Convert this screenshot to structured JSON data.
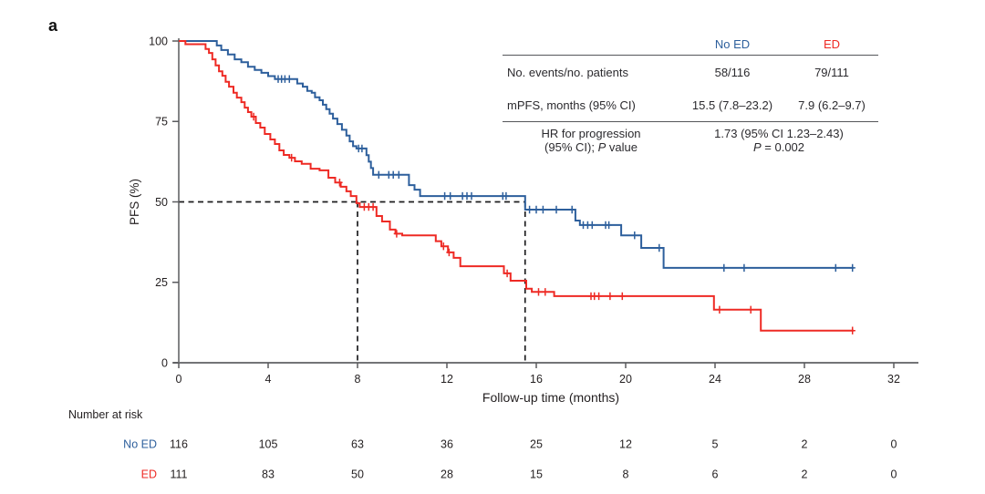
{
  "panel_label": "a",
  "stats": {
    "col_headers": [
      "No ED",
      "ED"
    ],
    "rows": [
      {
        "label": "No. events/no. patients",
        "no_ed": "58/116",
        "ed": "79/111"
      },
      {
        "label": "mPFS, months (95% CI)",
        "no_ed": "15.5 (7.8–23.2)",
        "ed": "7.9 (6.2–9.7)"
      }
    ],
    "hr_row": {
      "label_line1": "HR for progression",
      "label_line2_pre": "(95% CI); ",
      "label_line2_italic": "P",
      "label_line2_post": " value",
      "value_line1": "1.73 (95% CI 1.23–2.43)",
      "value_line2_italic": "P",
      "value_line2_post": " = 0.002"
    }
  },
  "chart_data": {
    "type": "line",
    "subtype": "kaplan_meier_step",
    "xlabel": "Follow-up time (months)",
    "ylabel": "PFS (%)",
    "xlim": [
      0,
      33
    ],
    "ylim": [
      0,
      100
    ],
    "x_ticks": [
      0,
      4,
      8,
      12,
      16,
      20,
      24,
      28,
      32
    ],
    "y_ticks": [
      0,
      25,
      50,
      75,
      100
    ],
    "grid": false,
    "median_guides": {
      "fifty_pct_line": {
        "y": 50,
        "x_from": 0,
        "x_to": 15.5
      },
      "vertical_drops": [
        8,
        15.5
      ]
    },
    "series": [
      {
        "name": "No ED",
        "color": "#2d5f9c",
        "median_pfs_months": 15.5,
        "end_month": 30.2,
        "steps": [
          [
            0,
            100
          ],
          [
            1.7,
            98.6
          ],
          [
            1.9,
            97.2
          ],
          [
            2.2,
            95.8
          ],
          [
            2.5,
            94.3
          ],
          [
            2.8,
            93.4
          ],
          [
            3.1,
            92.0
          ],
          [
            3.4,
            91.0
          ],
          [
            3.7,
            90.1
          ],
          [
            4.0,
            89.1
          ],
          [
            4.3,
            88.2
          ],
          [
            5.3,
            86.8
          ],
          [
            5.55,
            85.8
          ],
          [
            5.75,
            84.5
          ],
          [
            5.95,
            83.9
          ],
          [
            6.1,
            82.5
          ],
          [
            6.3,
            81.6
          ],
          [
            6.45,
            80.2
          ],
          [
            6.6,
            78.8
          ],
          [
            6.75,
            77.4
          ],
          [
            6.9,
            75.9
          ],
          [
            7.1,
            74.2
          ],
          [
            7.3,
            72.4
          ],
          [
            7.5,
            70.6
          ],
          [
            7.65,
            68.8
          ],
          [
            7.8,
            67.3
          ],
          [
            7.95,
            66.6
          ],
          [
            8.4,
            64.5
          ],
          [
            8.5,
            62.5
          ],
          [
            8.6,
            60.5
          ],
          [
            8.7,
            58.4
          ],
          [
            10.3,
            55.2
          ],
          [
            10.55,
            53.8
          ],
          [
            10.8,
            51.8
          ],
          [
            15.5,
            47.6
          ],
          [
            17.75,
            44.2
          ],
          [
            17.95,
            42.8
          ],
          [
            19.8,
            39.6
          ],
          [
            20.7,
            35.7
          ],
          [
            21.7,
            29.5
          ]
        ],
        "censor_months": [
          4.45,
          4.6,
          4.75,
          4.95,
          8.05,
          8.2,
          8.95,
          9.4,
          9.6,
          9.85,
          11.9,
          12.15,
          12.7,
          12.9,
          13.1,
          14.5,
          14.65,
          15.7,
          16.0,
          16.3,
          16.9,
          17.6,
          18.1,
          18.3,
          18.5,
          19.1,
          19.25,
          20.4,
          21.5,
          24.4,
          25.3,
          29.4,
          30.15
        ]
      },
      {
        "name": "ED",
        "color": "#ee2a24",
        "median_pfs_months": 7.9,
        "end_month": 30.2,
        "steps": [
          [
            0,
            100
          ],
          [
            0.3,
            99.0
          ],
          [
            1.2,
            97.5
          ],
          [
            1.35,
            96.3
          ],
          [
            1.5,
            94.3
          ],
          [
            1.65,
            92.4
          ],
          [
            1.8,
            90.6
          ],
          [
            1.95,
            89.2
          ],
          [
            2.1,
            87.3
          ],
          [
            2.25,
            85.8
          ],
          [
            2.45,
            83.9
          ],
          [
            2.6,
            82.4
          ],
          [
            2.8,
            81.0
          ],
          [
            2.95,
            79.3
          ],
          [
            3.1,
            77.9
          ],
          [
            3.25,
            76.5
          ],
          [
            3.45,
            74.5
          ],
          [
            3.65,
            73.1
          ],
          [
            3.85,
            71.1
          ],
          [
            4.1,
            69.4
          ],
          [
            4.3,
            68.0
          ],
          [
            4.5,
            66.0
          ],
          [
            4.7,
            64.6
          ],
          [
            4.95,
            63.7
          ],
          [
            5.2,
            62.6
          ],
          [
            5.5,
            61.8
          ],
          [
            5.9,
            60.3
          ],
          [
            6.3,
            59.8
          ],
          [
            6.7,
            57.5
          ],
          [
            7.0,
            56.0
          ],
          [
            7.25,
            54.7
          ],
          [
            7.5,
            53.3
          ],
          [
            7.7,
            51.8
          ],
          [
            7.95,
            49.6
          ],
          [
            8.1,
            48.4
          ],
          [
            8.85,
            45.6
          ],
          [
            9.1,
            43.9
          ],
          [
            9.45,
            41.4
          ],
          [
            9.7,
            40.1
          ],
          [
            10.0,
            39.6
          ],
          [
            11.5,
            37.8
          ],
          [
            11.75,
            36.2
          ],
          [
            12.05,
            34.3
          ],
          [
            12.3,
            32.6
          ],
          [
            12.6,
            30.0
          ],
          [
            14.55,
            27.8
          ],
          [
            14.85,
            25.5
          ],
          [
            15.55,
            23.0
          ],
          [
            15.8,
            22.0
          ],
          [
            16.8,
            20.7
          ],
          [
            23.95,
            16.5
          ],
          [
            26.05,
            10.0
          ]
        ],
        "censor_months": [
          3.35,
          5.05,
          7.2,
          8.3,
          8.5,
          8.7,
          9.75,
          11.85,
          12.1,
          14.7,
          16.1,
          16.4,
          18.45,
          18.6,
          18.8,
          19.3,
          19.85,
          24.2,
          25.6,
          30.15
        ]
      }
    ],
    "risk_table": {
      "title": "Number at risk",
      "time_points": [
        0,
        4,
        8,
        12,
        16,
        20,
        24,
        28,
        32
      ],
      "rows": [
        {
          "name": "No ED",
          "color": "#2d5f9c",
          "counts": [
            "116",
            "105",
            "63",
            "36",
            "25",
            "12",
            "5",
            "2",
            "0"
          ]
        },
        {
          "name": "ED",
          "color": "#ee2a24",
          "counts": [
            "111",
            "83",
            "50",
            "28",
            "15",
            "8",
            "6",
            "2",
            "0"
          ]
        }
      ]
    }
  }
}
